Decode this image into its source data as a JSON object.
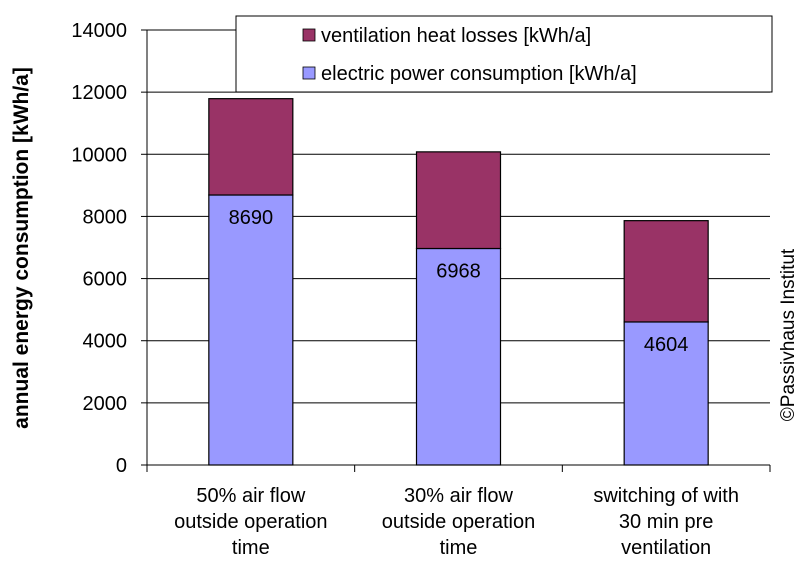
{
  "chart_data": {
    "type": "bar",
    "stacked": true,
    "categories": [
      [
        "50% air flow",
        "outside operation",
        "time"
      ],
      [
        "30% air flow",
        "outside operation",
        "time"
      ],
      [
        "switching of with",
        "30 min pre",
        "ventilation"
      ]
    ],
    "series": [
      {
        "name": "electric power consumption [kWh/a]",
        "values": [
          8690,
          6968,
          4604
        ],
        "color": "#9999ff",
        "data_labels": [
          "8690",
          "6968",
          "4604"
        ]
      },
      {
        "name": "ventilation heat losses [kWh/a]",
        "values": [
          3100,
          3110,
          3260
        ],
        "color": "#993366"
      }
    ],
    "ylabel": "annual energy consumption [kWh/a]",
    "ylim": [
      0,
      14000
    ],
    "yticks": [
      0,
      2000,
      4000,
      6000,
      8000,
      10000,
      12000,
      14000
    ],
    "grid": true,
    "legend_position": "top-right",
    "credit": "©Passivhaus Institut"
  }
}
